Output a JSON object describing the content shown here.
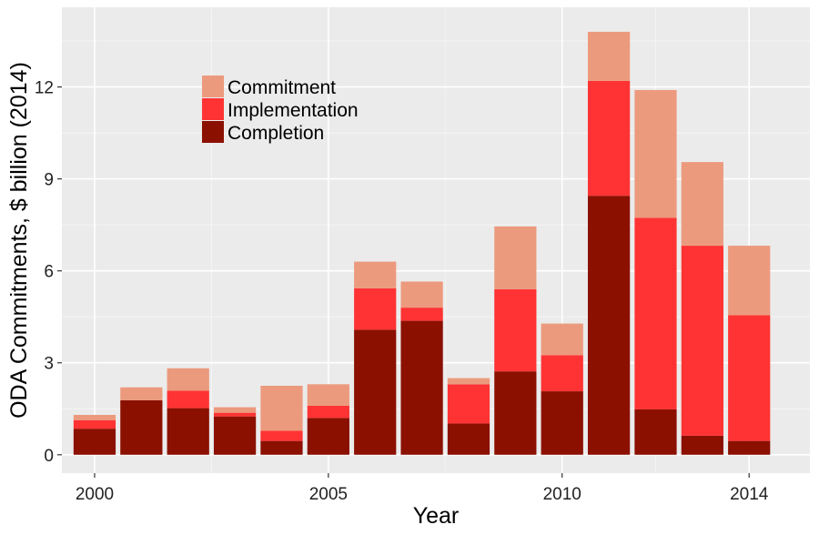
{
  "chart_data": {
    "type": "bar",
    "stacked": true,
    "title": "",
    "xlabel": "Year",
    "ylabel": "ODA Commitments, $ billion (2014)",
    "x": [
      2000,
      2001,
      2002,
      2003,
      2004,
      2005,
      2006,
      2007,
      2008,
      2009,
      2010,
      2011,
      2012,
      2013,
      2014
    ],
    "xticks": [
      "2000",
      "2005",
      "2010",
      "2014"
    ],
    "yticks": [
      "0",
      "3",
      "6",
      "9",
      "12"
    ],
    "ylim": [
      -0.6,
      14.6
    ],
    "xlim": [
      1999.3,
      2015.3
    ],
    "legend_position": "top-left-inside",
    "grid": true,
    "series": [
      {
        "name": "Completion",
        "color": "#8B1000",
        "values": [
          0.85,
          1.78,
          1.52,
          1.25,
          0.45,
          1.2,
          4.08,
          4.37,
          1.02,
          2.72,
          2.07,
          8.45,
          1.48,
          0.62,
          0.45
        ]
      },
      {
        "name": "Implementation",
        "color": "#FF3333",
        "values": [
          0.28,
          0.0,
          0.57,
          0.12,
          0.33,
          0.4,
          1.35,
          0.43,
          1.28,
          2.68,
          1.18,
          3.75,
          6.25,
          6.2,
          4.1
        ]
      },
      {
        "name": "Commitment",
        "color": "#EC9A7E",
        "values": [
          0.17,
          0.42,
          0.73,
          0.18,
          1.47,
          0.7,
          0.87,
          0.85,
          0.2,
          2.05,
          1.03,
          1.6,
          4.17,
          2.73,
          2.27
        ]
      }
    ],
    "legend": [
      {
        "name": "Commitment",
        "color": "#EC9A7E"
      },
      {
        "name": "Implementation",
        "color": "#FF3333"
      },
      {
        "name": "Completion",
        "color": "#8B1000"
      }
    ]
  }
}
